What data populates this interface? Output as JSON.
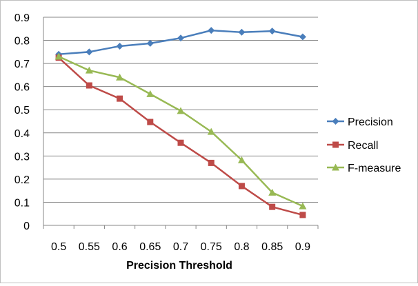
{
  "chart_data": {
    "type": "line",
    "title": "",
    "xlabel": "Precision Threshold",
    "ylabel": "",
    "categories": [
      "0.5",
      "0.55",
      "0.6",
      "0.65",
      "0.7",
      "0.75",
      "0.8",
      "0.85",
      "0.9"
    ],
    "ylim": [
      0,
      0.9
    ],
    "yticks": [
      "0",
      "0.1",
      "0.2",
      "0.3",
      "0.4",
      "0.5",
      "0.6",
      "0.7",
      "0.8",
      "0.9"
    ],
    "grid": "horizontal",
    "legend_position": "right",
    "series": [
      {
        "name": "Precision",
        "color": "#4a7ebb",
        "marker": "diamond",
        "values": [
          0.74,
          0.75,
          0.775,
          0.787,
          0.81,
          0.843,
          0.835,
          0.84,
          0.815
        ]
      },
      {
        "name": "Recall",
        "color": "#be4b48",
        "marker": "square",
        "values": [
          0.725,
          0.605,
          0.548,
          0.447,
          0.357,
          0.27,
          0.17,
          0.08,
          0.045
        ]
      },
      {
        "name": "F-measure",
        "color": "#98b954",
        "marker": "triangle",
        "values": [
          0.73,
          0.67,
          0.64,
          0.568,
          0.495,
          0.405,
          0.282,
          0.142,
          0.083
        ]
      }
    ]
  }
}
